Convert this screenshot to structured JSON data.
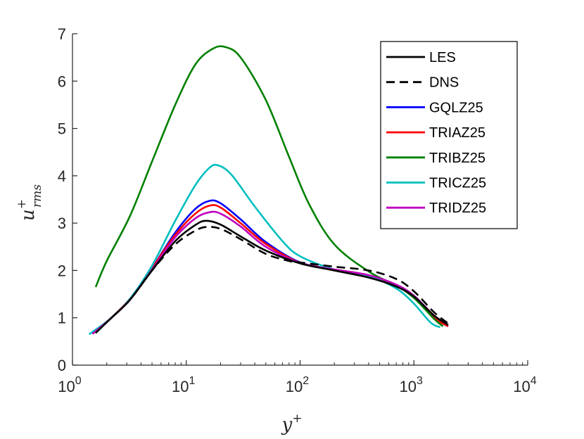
{
  "chart_data": {
    "type": "line",
    "xscale": "log",
    "xlim": [
      1,
      10000
    ],
    "ylim": [
      0,
      7
    ],
    "grid": false,
    "legend_position": "top-right",
    "xlabel": "y+",
    "ylabel": "u+rms",
    "xticks": [
      {
        "value": 1,
        "base": "10",
        "exp": "0"
      },
      {
        "value": 10,
        "base": "10",
        "exp": "1"
      },
      {
        "value": 100,
        "base": "10",
        "exp": "2"
      },
      {
        "value": 1000,
        "base": "10",
        "exp": "3"
      },
      {
        "value": 10000,
        "base": "10",
        "exp": "4"
      }
    ],
    "yticks": [
      "0",
      "1",
      "2",
      "3",
      "4",
      "5",
      "6",
      "7"
    ],
    "series": [
      {
        "name": "LES",
        "color": "#000000",
        "dash": "solid",
        "points": [
          [
            1.6,
            0.68
          ],
          [
            2.2,
            1.0
          ],
          [
            3.2,
            1.38
          ],
          [
            5,
            2.0
          ],
          [
            8,
            2.62
          ],
          [
            12,
            2.96
          ],
          [
            15,
            3.05
          ],
          [
            20,
            2.97
          ],
          [
            30,
            2.72
          ],
          [
            50,
            2.42
          ],
          [
            100,
            2.15
          ],
          [
            200,
            2.0
          ],
          [
            400,
            1.85
          ],
          [
            700,
            1.66
          ],
          [
            1000,
            1.45
          ],
          [
            1500,
            1.05
          ],
          [
            2000,
            0.85
          ]
        ]
      },
      {
        "name": "DNS",
        "color": "#000000",
        "dash": "dashed",
        "points": [
          [
            1.6,
            0.68
          ],
          [
            2.2,
            1.0
          ],
          [
            3.2,
            1.38
          ],
          [
            5,
            2.0
          ],
          [
            8,
            2.55
          ],
          [
            12,
            2.84
          ],
          [
            15,
            2.92
          ],
          [
            20,
            2.88
          ],
          [
            30,
            2.66
          ],
          [
            50,
            2.35
          ],
          [
            80,
            2.2
          ],
          [
            100,
            2.17
          ],
          [
            200,
            2.08
          ],
          [
            400,
            2.0
          ],
          [
            700,
            1.82
          ],
          [
            1000,
            1.56
          ],
          [
            1500,
            1.12
          ],
          [
            2000,
            0.88
          ]
        ]
      },
      {
        "name": "GQLZ25",
        "color": "#0000ff",
        "dash": "solid",
        "points": [
          [
            1.5,
            0.66
          ],
          [
            2.2,
            1.0
          ],
          [
            3.2,
            1.4
          ],
          [
            5,
            2.05
          ],
          [
            8,
            2.8
          ],
          [
            12,
            3.3
          ],
          [
            16,
            3.47
          ],
          [
            20,
            3.42
          ],
          [
            30,
            3.08
          ],
          [
            50,
            2.6
          ],
          [
            100,
            2.17
          ],
          [
            200,
            2.02
          ],
          [
            400,
            1.9
          ],
          [
            700,
            1.68
          ],
          [
            1000,
            1.43
          ],
          [
            1500,
            1.0
          ],
          [
            2000,
            0.82
          ]
        ]
      },
      {
        "name": "TRIAZ25",
        "color": "#ff0000",
        "dash": "solid",
        "points": [
          [
            1.5,
            0.66
          ],
          [
            2.2,
            1.0
          ],
          [
            3.2,
            1.4
          ],
          [
            5,
            2.05
          ],
          [
            8,
            2.75
          ],
          [
            12,
            3.2
          ],
          [
            16,
            3.37
          ],
          [
            20,
            3.33
          ],
          [
            30,
            3.0
          ],
          [
            50,
            2.56
          ],
          [
            100,
            2.16
          ],
          [
            200,
            2.02
          ],
          [
            400,
            1.9
          ],
          [
            700,
            1.68
          ],
          [
            1000,
            1.43
          ],
          [
            1500,
            1.0
          ],
          [
            2000,
            0.82
          ]
        ]
      },
      {
        "name": "TRIBZ25",
        "color": "#008000",
        "dash": "solid",
        "points": [
          [
            1.6,
            1.65
          ],
          [
            2,
            2.2
          ],
          [
            3.2,
            3.15
          ],
          [
            5,
            4.3
          ],
          [
            8,
            5.5
          ],
          [
            12,
            6.35
          ],
          [
            17,
            6.68
          ],
          [
            22,
            6.72
          ],
          [
            30,
            6.5
          ],
          [
            50,
            5.6
          ],
          [
            80,
            4.4
          ],
          [
            120,
            3.4
          ],
          [
            200,
            2.55
          ],
          [
            400,
            1.98
          ],
          [
            700,
            1.68
          ],
          [
            1000,
            1.42
          ],
          [
            1500,
            0.98
          ],
          [
            1800,
            0.82
          ]
        ]
      },
      {
        "name": "TRICZ25",
        "color": "#00bfbf",
        "dash": "solid",
        "points": [
          [
            1.4,
            0.65
          ],
          [
            2.2,
            1.0
          ],
          [
            3.2,
            1.4
          ],
          [
            5,
            2.1
          ],
          [
            8,
            3.05
          ],
          [
            12,
            3.8
          ],
          [
            16,
            4.17
          ],
          [
            19,
            4.22
          ],
          [
            25,
            4.02
          ],
          [
            40,
            3.35
          ],
          [
            70,
            2.62
          ],
          [
            100,
            2.3
          ],
          [
            200,
            2.02
          ],
          [
            400,
            1.88
          ],
          [
            700,
            1.62
          ],
          [
            1000,
            1.3
          ],
          [
            1400,
            0.9
          ],
          [
            1700,
            0.8
          ]
        ]
      },
      {
        "name": "TRIDZ25",
        "color": "#bf00bf",
        "dash": "solid",
        "points": [
          [
            1.5,
            0.66
          ],
          [
            2.2,
            1.0
          ],
          [
            3.2,
            1.38
          ],
          [
            5,
            2.02
          ],
          [
            8,
            2.7
          ],
          [
            12,
            3.1
          ],
          [
            16,
            3.23
          ],
          [
            20,
            3.2
          ],
          [
            30,
            2.93
          ],
          [
            50,
            2.5
          ],
          [
            100,
            2.16
          ],
          [
            200,
            2.02
          ],
          [
            400,
            1.9
          ],
          [
            700,
            1.7
          ],
          [
            1000,
            1.47
          ],
          [
            1500,
            1.05
          ],
          [
            2000,
            0.85
          ]
        ]
      }
    ]
  }
}
